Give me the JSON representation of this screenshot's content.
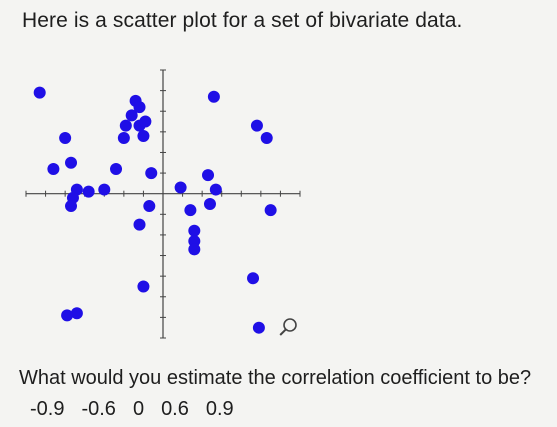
{
  "prompt": "Here is a scatter plot for a set of bivariate data.",
  "question": "What would you estimate the correlation coefficient to be?",
  "choices": [
    "-0.9",
    "-0.6",
    "0",
    "0.6",
    "0.9"
  ],
  "icons": {
    "zoom": "magnifier-icon"
  },
  "colors": {
    "point": "#1f0fe6",
    "axis": "#444444",
    "background": "#f4f4f2"
  },
  "chart_data": {
    "type": "scatter",
    "title": "",
    "xlabel": "",
    "ylabel": "",
    "grid": false,
    "xlim": [
      -7,
      7
    ],
    "ylim": [
      -7,
      6
    ],
    "tick_step": 1,
    "points": [
      {
        "x": -6.3,
        "y": 4.9
      },
      {
        "x": -5.0,
        "y": 2.7
      },
      {
        "x": -4.7,
        "y": 1.5
      },
      {
        "x": -5.6,
        "y": 1.2
      },
      {
        "x": -4.4,
        "y": 0.2
      },
      {
        "x": -4.6,
        "y": -0.2
      },
      {
        "x": -4.7,
        "y": -0.6
      },
      {
        "x": -3.8,
        "y": 0.1
      },
      {
        "x": -3.0,
        "y": 0.2
      },
      {
        "x": -2.4,
        "y": 1.2
      },
      {
        "x": -2.0,
        "y": 2.7
      },
      {
        "x": -1.9,
        "y": 3.3
      },
      {
        "x": -1.6,
        "y": 3.8
      },
      {
        "x": -1.4,
        "y": 4.5
      },
      {
        "x": -1.2,
        "y": 3.3
      },
      {
        "x": -1.0,
        "y": 2.8
      },
      {
        "x": -1.2,
        "y": 4.2
      },
      {
        "x": -0.9,
        "y": 3.5
      },
      {
        "x": -0.6,
        "y": 1.0
      },
      {
        "x": -1.2,
        "y": -1.5
      },
      {
        "x": -0.7,
        "y": -0.6
      },
      {
        "x": -1.0,
        "y": -4.5
      },
      {
        "x": -4.4,
        "y": -5.8
      },
      {
        "x": -4.9,
        "y": -5.9
      },
      {
        "x": 0.9,
        "y": 0.3
      },
      {
        "x": 1.4,
        "y": -0.8
      },
      {
        "x": 1.6,
        "y": -1.8
      },
      {
        "x": 1.6,
        "y": -2.3
      },
      {
        "x": 1.6,
        "y": -2.7
      },
      {
        "x": 2.3,
        "y": 0.9
      },
      {
        "x": 2.4,
        "y": -0.5
      },
      {
        "x": 2.7,
        "y": 0.2
      },
      {
        "x": 2.6,
        "y": 4.7
      },
      {
        "x": 4.8,
        "y": 3.3
      },
      {
        "x": 5.3,
        "y": 2.7
      },
      {
        "x": 5.5,
        "y": -0.8
      },
      {
        "x": 4.6,
        "y": -4.1
      },
      {
        "x": 4.9,
        "y": -6.5
      }
    ]
  }
}
